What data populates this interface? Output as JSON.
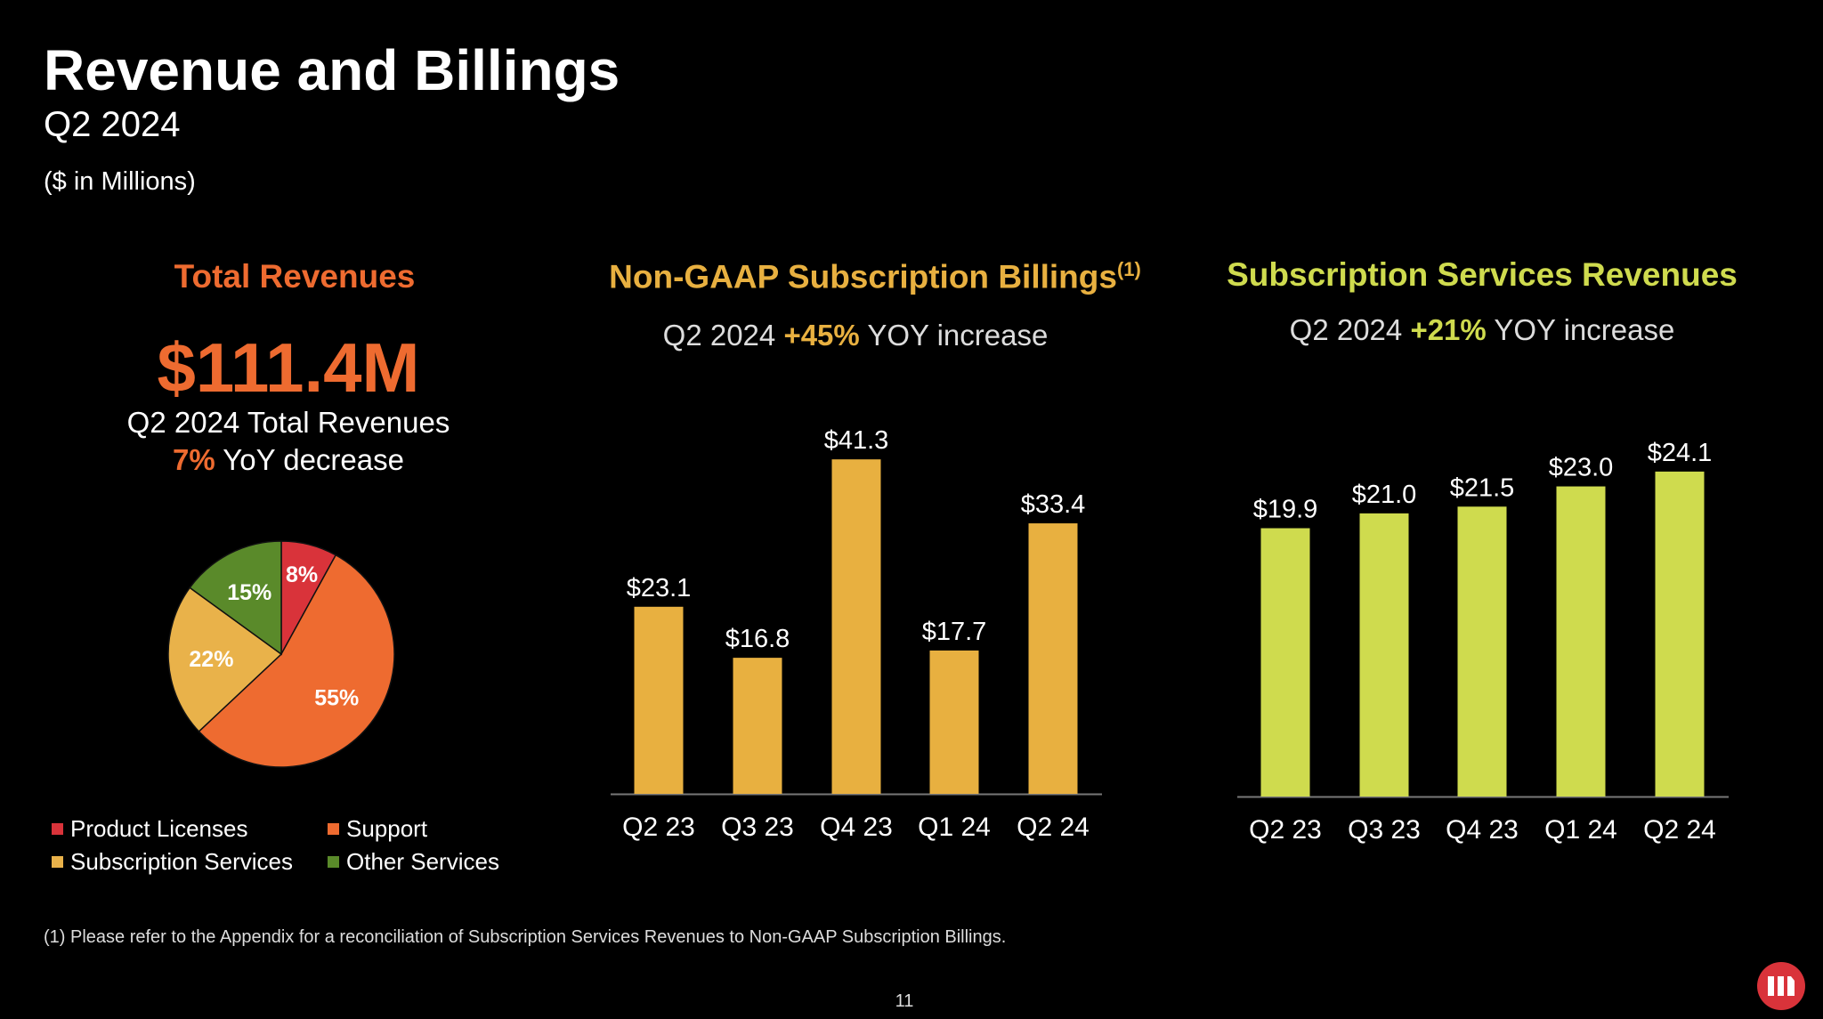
{
  "title": "Revenue and Billings",
  "subtitle": "Q2 2024",
  "units": "($ in Millions)",
  "total_revenues": {
    "title": "Total Revenues",
    "value": "$111.4M",
    "line1": "Q2 2024 Total Revenues",
    "pct": "7%",
    "line2_rest": " YoY decrease"
  },
  "billings": {
    "title": "Non-GAAP Subscription Billings",
    "superscript": "(1)",
    "sub_prefix": "Q2 2024 ",
    "sub_pct": "+45%",
    "sub_rest": " YOY increase"
  },
  "subscription": {
    "title": "Subscription Services Revenues",
    "sub_prefix": "Q2 2024 ",
    "sub_pct": "+21%",
    "sub_rest": " YOY increase"
  },
  "footnote": "(1) Please refer to the Appendix for a reconciliation of Subscription Services Revenues to Non-GAAP Subscription Billings.",
  "page_number": "11",
  "logo_icon": "company-logo-icon",
  "colors": {
    "product": "#D9333A",
    "support": "#EE6B30",
    "subscription": "#E9B24A",
    "other": "#5A8A2A",
    "billings_bar": "#E8B040",
    "subs_bar": "#CFDB4E"
  },
  "chart_data": [
    {
      "type": "pie",
      "slices": [
        {
          "name": "Product Licenses",
          "value": 8,
          "label": "8%",
          "color": "#D9333A"
        },
        {
          "name": "Support",
          "value": 55,
          "label": "55%",
          "color": "#EE6B30"
        },
        {
          "name": "Subscription Services",
          "value": 22,
          "label": "22%",
          "color": "#E9B24A"
        },
        {
          "name": "Other Services",
          "value": 15,
          "label": "15%",
          "color": "#5A8A2A"
        }
      ],
      "legend": "bottom"
    },
    {
      "type": "bar",
      "categories": [
        "Q2 23",
        "Q3 23",
        "Q4 23",
        "Q1 24",
        "Q2 24"
      ],
      "values": [
        23.1,
        16.8,
        41.3,
        17.7,
        33.4
      ],
      "labels": [
        "$23.1",
        "$16.8",
        "$41.3",
        "$17.7",
        "$33.4"
      ],
      "color": "#E8B040",
      "ylim": [
        0,
        45
      ]
    },
    {
      "type": "bar",
      "categories": [
        "Q2 23",
        "Q3 23",
        "Q4 23",
        "Q1 24",
        "Q2 24"
      ],
      "values": [
        19.9,
        21.0,
        21.5,
        23.0,
        24.1
      ],
      "labels": [
        "$19.9",
        "$21.0",
        "$21.5",
        "$23.0",
        "$24.1"
      ],
      "color": "#CFDB4E",
      "ylim": [
        0,
        26
      ]
    }
  ]
}
